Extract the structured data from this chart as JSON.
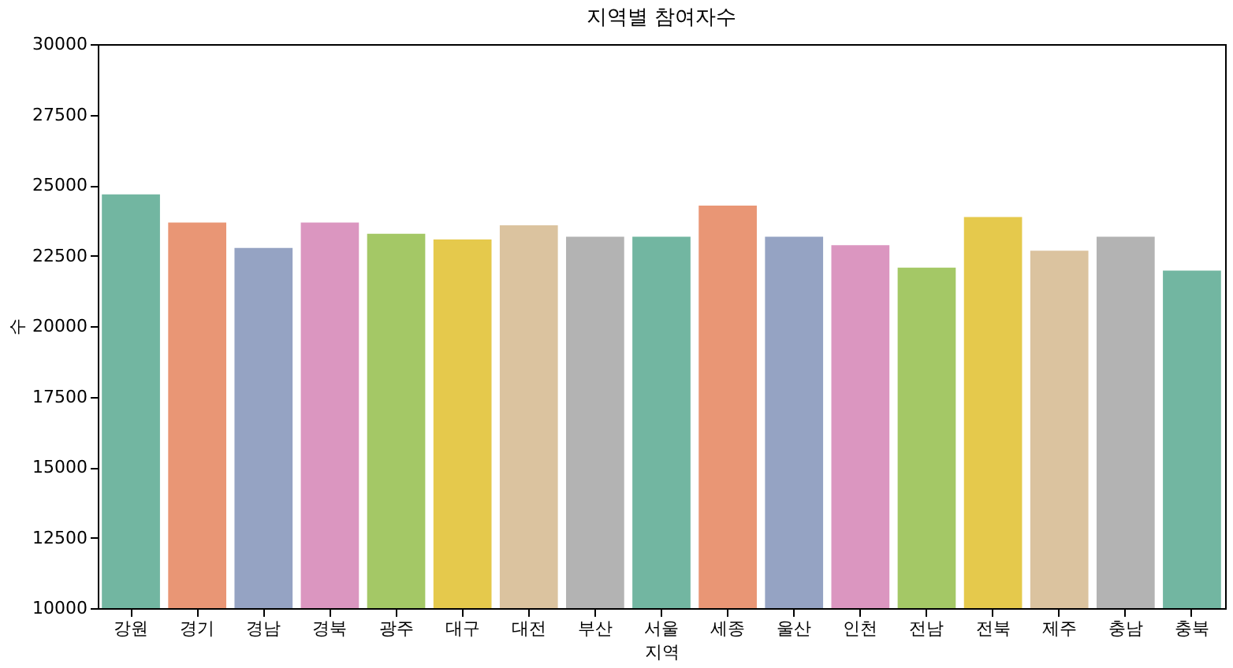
{
  "chart_data": {
    "type": "bar",
    "title": "지역별 참여자수",
    "xlabel": "지역",
    "ylabel": "수",
    "categories": [
      "강원",
      "경기",
      "경남",
      "경북",
      "광주",
      "대구",
      "대전",
      "부산",
      "서울",
      "세종",
      "울산",
      "인천",
      "전남",
      "전북",
      "제주",
      "충남",
      "충북"
    ],
    "values": [
      24700,
      23700,
      22800,
      23700,
      23300,
      23100,
      23600,
      23200,
      23200,
      24300,
      23200,
      22900,
      22100,
      23900,
      22700,
      23200,
      22000
    ],
    "colors": [
      "#72b6a1",
      "#e99675",
      "#95a3c3",
      "#db96c0",
      "#a4c866",
      "#e5c94c",
      "#dbc39f",
      "#b3b3b3",
      "#72b6a1",
      "#e99675",
      "#95a3c3",
      "#db96c0",
      "#a4c866",
      "#e5c94c",
      "#dbc39f",
      "#b3b3b3",
      "#72b6a1"
    ],
    "ylim": [
      10000,
      30000
    ],
    "yticks": [
      10000,
      12500,
      15000,
      17500,
      20000,
      22500,
      25000,
      27500,
      30000
    ],
    "grid": false,
    "legend": false
  }
}
